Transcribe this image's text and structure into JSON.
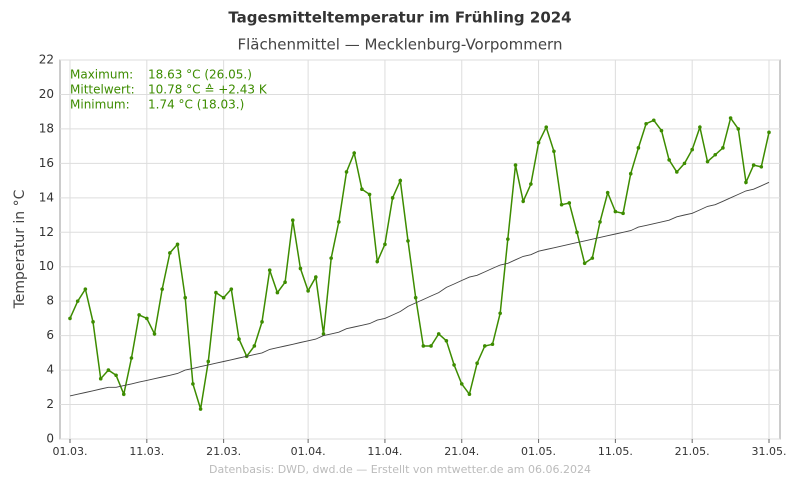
{
  "chart_data": {
    "type": "line",
    "title": "Tagesmitteltemperatur im Frühling 2024",
    "subtitle": "Flächenmittel — Mecklenburg-Vorpommern",
    "y_label": "Temperatur in °C",
    "source": "Datenbasis: DWD, dwd.de — Erstellt von mtwetter.de am 06.06.2024",
    "annotations": [
      {
        "label": "Maximum:",
        "value": "18.63 °C  (26.05.)"
      },
      {
        "label": "Mittelwert:",
        "value": "10.78 °C  ≙ +2.43 K"
      },
      {
        "label": "Minimum:",
        "value": "1.74 °C  (18.03.)"
      }
    ],
    "categories": [
      "01.03.",
      null,
      null,
      null,
      null,
      null,
      null,
      null,
      null,
      null,
      "11.03.",
      null,
      null,
      null,
      null,
      null,
      null,
      null,
      null,
      null,
      "21.03.",
      null,
      null,
      null,
      null,
      null,
      null,
      null,
      null,
      null,
      null,
      "01.04.",
      null,
      null,
      null,
      null,
      null,
      null,
      null,
      null,
      null,
      "11.04.",
      null,
      null,
      null,
      null,
      null,
      null,
      null,
      null,
      null,
      "21.04.",
      null,
      null,
      null,
      null,
      null,
      null,
      null,
      null,
      null,
      "01.05.",
      null,
      null,
      null,
      null,
      null,
      null,
      null,
      null,
      null,
      "11.05.",
      null,
      null,
      null,
      null,
      null,
      null,
      null,
      null,
      null,
      "21.05.",
      null,
      null,
      null,
      null,
      null,
      null,
      null,
      null,
      null,
      "31.05."
    ],
    "series": [
      {
        "color": "#3d8c00",
        "markers": true,
        "values": [
          7.0,
          8.0,
          8.7,
          6.8,
          3.5,
          4.0,
          3.7,
          2.6,
          4.7,
          7.2,
          7.0,
          6.1,
          8.7,
          10.8,
          11.3,
          8.2,
          3.2,
          1.74,
          4.5,
          8.5,
          8.2,
          8.7,
          5.8,
          4.8,
          5.4,
          6.8,
          9.8,
          8.5,
          9.1,
          12.7,
          9.9,
          8.6,
          9.4,
          6.1,
          10.5,
          12.6,
          15.5,
          16.6,
          14.5,
          14.2,
          10.3,
          11.3,
          14.0,
          15.0,
          11.5,
          8.2,
          5.4,
          5.4,
          6.1,
          5.7,
          4.3,
          3.2,
          2.6,
          4.4,
          5.4,
          5.5,
          7.3,
          11.6,
          15.9,
          13.8,
          14.8,
          17.2,
          18.1,
          16.7,
          13.6,
          13.7,
          12.0,
          10.2,
          10.5,
          12.6,
          14.3,
          13.2,
          13.1,
          15.4,
          16.9,
          18.3,
          18.5,
          17.9,
          16.2,
          15.5,
          16.0,
          16.8,
          18.1,
          16.1,
          16.5,
          16.9,
          18.63,
          18.0,
          14.9,
          15.9,
          15.8,
          17.8
        ]
      },
      {
        "color": "#444444",
        "markers": false,
        "values": [
          2.5,
          2.6,
          2.7,
          2.8,
          2.9,
          3.0,
          3.0,
          3.1,
          3.2,
          3.3,
          3.4,
          3.5,
          3.6,
          3.7,
          3.8,
          4.0,
          4.1,
          4.2,
          4.3,
          4.4,
          4.5,
          4.6,
          4.7,
          4.8,
          4.9,
          5.0,
          5.2,
          5.3,
          5.4,
          5.5,
          5.6,
          5.7,
          5.8,
          6.0,
          6.1,
          6.2,
          6.4,
          6.5,
          6.6,
          6.7,
          6.9,
          7.0,
          7.2,
          7.4,
          7.7,
          7.9,
          8.1,
          8.3,
          8.5,
          8.8,
          9.0,
          9.2,
          9.4,
          9.5,
          9.7,
          9.9,
          10.1,
          10.2,
          10.4,
          10.6,
          10.7,
          10.9,
          11.0,
          11.1,
          11.2,
          11.3,
          11.4,
          11.5,
          11.6,
          11.7,
          11.8,
          11.9,
          12.0,
          12.1,
          12.3,
          12.4,
          12.5,
          12.6,
          12.7,
          12.9,
          13.0,
          13.1,
          13.3,
          13.5,
          13.6,
          13.8,
          14.0,
          14.2,
          14.4,
          14.5,
          14.7,
          14.9
        ]
      }
    ],
    "ylim": [
      0,
      22
    ],
    "yticks": [
      0,
      2,
      4,
      6,
      8,
      10,
      12,
      14,
      16,
      18,
      20,
      22
    ],
    "grid": true
  }
}
